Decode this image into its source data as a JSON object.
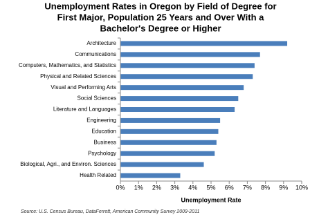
{
  "chart_data": {
    "type": "bar",
    "orientation": "horizontal",
    "title_lines": [
      "Unemployment Rates in Oregon by Field of Degree for",
      "First Major, Population 25 Years and Over With a",
      "Bachelor's Degree or Higher"
    ],
    "categories": [
      "Architecture",
      "Communications",
      "Computers, Mathematics, and Statistics",
      "Physical and Related Sciences",
      "Visual and Performing Arts",
      "Social Sciences",
      "Literature and Languages",
      "Engineering",
      "Education",
      "Business",
      "Psychology",
      "Biological, Agri., and Environ. Sciences",
      "Health Related"
    ],
    "values": [
      9.2,
      7.7,
      7.4,
      7.3,
      6.8,
      6.5,
      6.3,
      5.5,
      5.4,
      5.3,
      5.2,
      4.6,
      3.3
    ],
    "color": "#4a7ebb",
    "xlim": [
      0,
      10
    ],
    "xticks": [
      {
        "value": 0,
        "label": "0%"
      },
      {
        "value": 1,
        "label": "1%"
      },
      {
        "value": 2,
        "label": "2%"
      },
      {
        "value": 3,
        "label": "3%"
      },
      {
        "value": 4,
        "label": "4%"
      },
      {
        "value": 5,
        "label": "5%"
      },
      {
        "value": 6,
        "label": "6%"
      },
      {
        "value": 7,
        "label": "7%"
      },
      {
        "value": 8,
        "label": "8%"
      },
      {
        "value": 9,
        "label": "9%"
      },
      {
        "value": 10,
        "label": "10%"
      }
    ],
    "xlabel": "Unemployment Rate",
    "source": "Source: U.S. Census Bureau, DataFerrett, American Community Survey 2009-2011"
  }
}
